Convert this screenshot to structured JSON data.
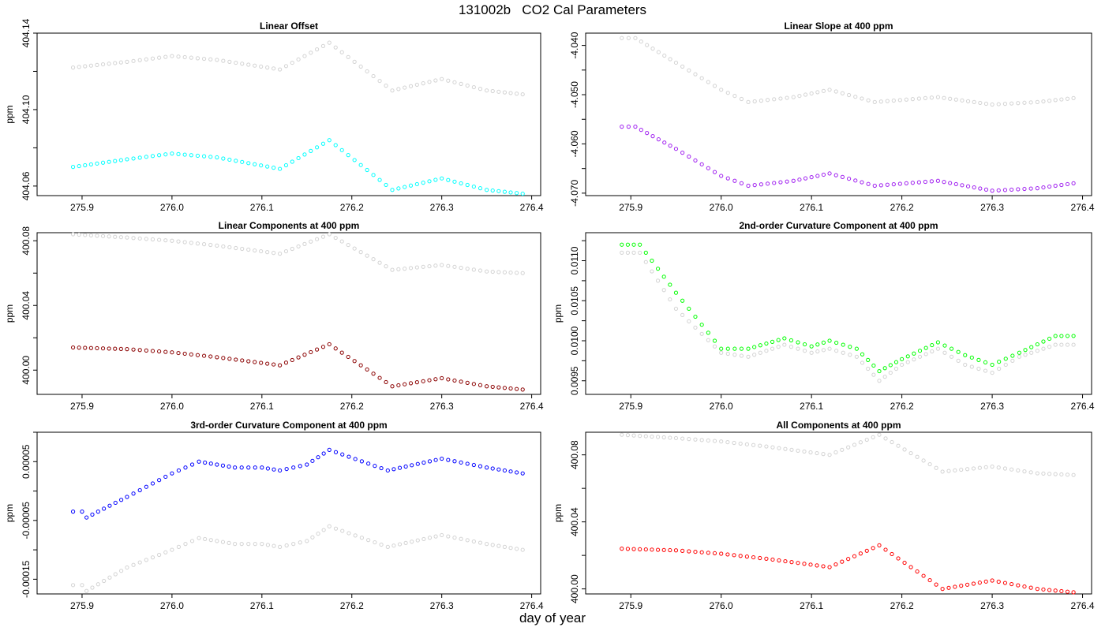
{
  "title": "131002b   CO2 Cal Parameters",
  "xlabel": "day of year",
  "chart_data": [
    {
      "type": "scatter",
      "title": "Linear Offset",
      "ylabel": "ppm",
      "xlim": [
        275.85,
        276.41
      ],
      "ylim": [
        404.055,
        404.14
      ],
      "xticks": [
        "275.9",
        "276.0",
        "276.1",
        "276.2",
        "276.3",
        "276.4"
      ],
      "yticks": [
        "404.06",
        "404.10",
        "404.14"
      ],
      "series": [
        {
          "color": "#d3d3d3",
          "values": {
            "x": [
              275.89,
              275.95,
              276.0,
              276.05,
              276.12,
              276.175,
              276.245,
              276.3,
              276.35,
              276.39
            ],
            "y": [
              404.122,
              404.125,
              404.128,
              404.126,
              404.121,
              404.135,
              404.11,
              404.116,
              404.11,
              404.108
            ]
          }
        },
        {
          "color": "#00ffff",
          "values": {
            "x": [
              275.89,
              275.95,
              276.0,
              276.05,
              276.12,
              276.175,
              276.245,
              276.3,
              276.35,
              276.39
            ],
            "y": [
              404.07,
              404.074,
              404.077,
              404.075,
              404.069,
              404.084,
              404.058,
              404.064,
              404.058,
              404.056
            ]
          }
        }
      ]
    },
    {
      "type": "scatter",
      "title": "Linear Slope at 400 ppm",
      "ylabel": "",
      "xlim": [
        275.85,
        276.41
      ],
      "ylim": [
        -4.0705,
        -4.0375
      ],
      "xticks": [
        "275.9",
        "276.0",
        "276.1",
        "276.2",
        "276.3",
        "276.4"
      ],
      "yticks": [
        "-4.070",
        "-4.060",
        "-4.050",
        "-4.040"
      ],
      "series": [
        {
          "color": "#d3d3d3",
          "values": {
            "x": [
              275.89,
              275.905,
              275.95,
              276.0,
              276.03,
              276.08,
              276.12,
              276.17,
              276.24,
              276.3,
              276.35,
              276.39
            ],
            "y": [
              -4.0385,
              -4.0385,
              -4.0435,
              -4.049,
              -4.0515,
              -4.0505,
              -4.049,
              -4.0515,
              -4.0505,
              -4.052,
              -4.0515,
              -4.0507
            ]
          }
        },
        {
          "color": "#a020f0",
          "values": {
            "x": [
              275.89,
              275.905,
              275.95,
              276.0,
              276.03,
              276.08,
              276.12,
              276.17,
              276.24,
              276.3,
              276.35,
              276.39
            ],
            "y": [
              -4.0565,
              -4.0565,
              -4.061,
              -4.0665,
              -4.0685,
              -4.0675,
              -4.066,
              -4.0685,
              -4.0675,
              -4.0695,
              -4.069,
              -4.068
            ]
          }
        }
      ]
    },
    {
      "type": "scatter",
      "title": "Linear Components at 400 ppm",
      "ylabel": "ppm",
      "xlim": [
        275.85,
        276.41
      ],
      "ylim": [
        399.985,
        400.085
      ],
      "xticks": [
        "275.9",
        "276.0",
        "276.1",
        "276.2",
        "276.3",
        "276.4"
      ],
      "yticks": [
        "400.00",
        "400.04",
        "400.08"
      ],
      "series": [
        {
          "color": "#d3d3d3",
          "values": {
            "x": [
              275.89,
              275.95,
              276.0,
              276.05,
              276.12,
              276.175,
              276.245,
              276.3,
              276.35,
              276.39
            ],
            "y": [
              400.084,
              400.082,
              400.08,
              400.077,
              400.072,
              400.084,
              400.062,
              400.065,
              400.061,
              400.06
            ]
          }
        },
        {
          "color": "#8b0000",
          "values": {
            "x": [
              275.89,
              275.95,
              276.0,
              276.05,
              276.12,
              276.175,
              276.245,
              276.3,
              276.35,
              276.39
            ],
            "y": [
              400.014,
              400.013,
              400.011,
              400.008,
              400.003,
              400.016,
              399.99,
              399.995,
              399.99,
              399.988
            ]
          }
        }
      ]
    },
    {
      "type": "scatter",
      "title": "2nd-order Curvature Component at 400 ppm",
      "ylabel": "ppm",
      "xlim": [
        275.85,
        276.41
      ],
      "ylim": [
        0.00933,
        0.01135
      ],
      "xticks": [
        "275.9",
        "276.0",
        "276.1",
        "276.2",
        "276.3",
        "276.4"
      ],
      "yticks": [
        "0.0095",
        "0.0100",
        "0.0105",
        "0.0110"
      ],
      "series": [
        {
          "color": "#d3d3d3",
          "values": {
            "x": [
              275.89,
              275.91,
              275.95,
              276.0,
              276.03,
              276.07,
              276.1,
              276.12,
              276.15,
              276.175,
              276.2,
              276.24,
              276.27,
              276.3,
              276.33,
              276.37,
              276.39
            ],
            "y": [
              0.0111,
              0.0111,
              0.0104,
              0.00985,
              0.0098,
              0.00995,
              0.00985,
              0.0099,
              0.0098,
              0.0095,
              0.0097,
              0.0099,
              0.0097,
              0.0096,
              0.0098,
              0.00995,
              0.00995
            ]
          }
        },
        {
          "color": "#00ff00",
          "values": {
            "x": [
              275.89,
              275.91,
              275.95,
              276.0,
              276.03,
              276.07,
              276.1,
              276.12,
              276.15,
              276.175,
              276.2,
              276.24,
              276.27,
              276.3,
              276.33,
              276.37,
              276.39
            ],
            "y": [
              0.0112,
              0.0112,
              0.0106,
              0.0099,
              0.0099,
              0.01003,
              0.00993,
              0.01,
              0.0099,
              0.00962,
              0.00977,
              0.00998,
              0.00982,
              0.0097,
              0.00985,
              0.01006,
              0.01006
            ]
          }
        }
      ]
    },
    {
      "type": "scatter",
      "title": "3rd-order Curvature Component at 400 ppm",
      "ylabel": "ppm",
      "xlim": [
        275.85,
        276.41
      ],
      "ylim": [
        -0.000175,
        0.0001
      ],
      "xticks": [
        "275.9",
        "276.0",
        "276.1",
        "276.2",
        "276.3",
        "276.4"
      ],
      "yticks": [
        "-0.00015",
        "-0.00005",
        "0.00005"
      ],
      "series": [
        {
          "color": "#d3d3d3",
          "values": {
            "x": [
              275.89,
              275.9,
              275.905,
              275.95,
              276.0,
              276.03,
              276.07,
              276.1,
              276.12,
              276.15,
              276.175,
              276.24,
              276.3,
              276.35,
              276.39
            ],
            "y": [
              -0.00016,
              -0.00016,
              -0.00017,
              -0.00013,
              -0.0001,
              -8e-05,
              -9e-05,
              -9e-05,
              -9.5e-05,
              -8.5e-05,
              -6e-05,
              -9.5e-05,
              -7.5e-05,
              -9e-05,
              -0.0001
            ]
          }
        },
        {
          "color": "#0000ff",
          "values": {
            "x": [
              275.89,
              275.9,
              275.905,
              275.95,
              276.0,
              276.03,
              276.07,
              276.1,
              276.12,
              276.15,
              276.175,
              276.24,
              276.3,
              276.35,
              276.39
            ],
            "y": [
              -3.5e-05,
              -3.5e-05,
              -4.5e-05,
              -1e-05,
              3e-05,
              5e-05,
              4e-05,
              4e-05,
              3.5e-05,
              4.5e-05,
              7e-05,
              3.5e-05,
              5.5e-05,
              4e-05,
              3e-05
            ]
          }
        }
      ]
    },
    {
      "type": "scatter",
      "title": "All Components at 400 ppm",
      "ylabel": "ppm",
      "xlim": [
        275.85,
        276.41
      ],
      "ylim": [
        399.997,
        400.0935
      ],
      "xticks": [
        "275.9",
        "276.0",
        "276.1",
        "276.2",
        "276.3",
        "276.4"
      ],
      "yticks": [
        "400.00",
        "400.04",
        "400.08"
      ],
      "series": [
        {
          "color": "#d3d3d3",
          "values": {
            "x": [
              275.89,
              275.95,
              276.0,
              276.05,
              276.12,
              276.175,
              276.245,
              276.3,
              276.35,
              276.39
            ],
            "y": [
              400.092,
              400.09,
              400.088,
              400.085,
              400.08,
              400.092,
              400.07,
              400.073,
              400.069,
              400.068
            ]
          }
        },
        {
          "color": "#ff0000",
          "values": {
            "x": [
              275.89,
              275.95,
              276.0,
              276.05,
              276.12,
              276.175,
              276.245,
              276.3,
              276.35,
              276.39
            ],
            "y": [
              400.024,
              400.023,
              400.021,
              400.018,
              400.013,
              400.026,
              400.0,
              400.005,
              400.0,
              399.998
            ]
          }
        }
      ]
    }
  ]
}
